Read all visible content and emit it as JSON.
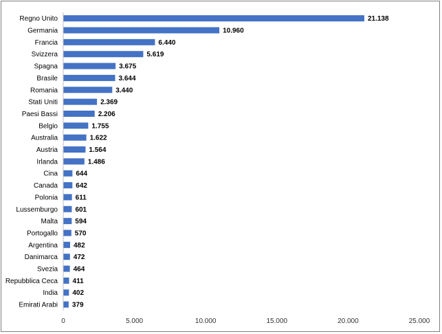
{
  "chart_data": {
    "type": "bar",
    "orientation": "horizontal",
    "categories": [
      "Regno Unito",
      "Germania",
      "Francia",
      "Svizzera",
      "Spagna",
      "Brasile",
      "Romania",
      "Stati Uniti",
      "Paesi Bassi",
      "Belgio",
      "Australia",
      "Austria",
      "Irlanda",
      "Cina",
      "Canada",
      "Polonia",
      "Lussemburgo",
      "Malta",
      "Portogallo",
      "Argentina",
      "Danimarca",
      "Svezia",
      "Repubblica Ceca",
      "India",
      "Emirati Arabi"
    ],
    "values": [
      21138,
      10960,
      6440,
      5619,
      3675,
      3644,
      3440,
      2369,
      2206,
      1755,
      1622,
      1564,
      1486,
      644,
      642,
      611,
      601,
      594,
      570,
      482,
      472,
      464,
      411,
      402,
      379
    ],
    "value_labels": [
      "21.138",
      "10.960",
      "6.440",
      "5.619",
      "3.675",
      "3.644",
      "3.440",
      "2.369",
      "2.206",
      "1.755",
      "1.622",
      "1.564",
      "1.486",
      "644",
      "642",
      "611",
      "601",
      "594",
      "570",
      "482",
      "472",
      "464",
      "411",
      "402",
      "379"
    ],
    "xlim": [
      0,
      25000
    ],
    "xticks": [
      0,
      5000,
      10000,
      15000,
      20000,
      25000
    ],
    "xtick_labels": [
      "0",
      "5.000",
      "10.000",
      "15.000",
      "20.000",
      "25.000"
    ],
    "title": "",
    "xlabel": "",
    "ylabel": "",
    "grid": false,
    "bar_color": "#4472c4"
  }
}
